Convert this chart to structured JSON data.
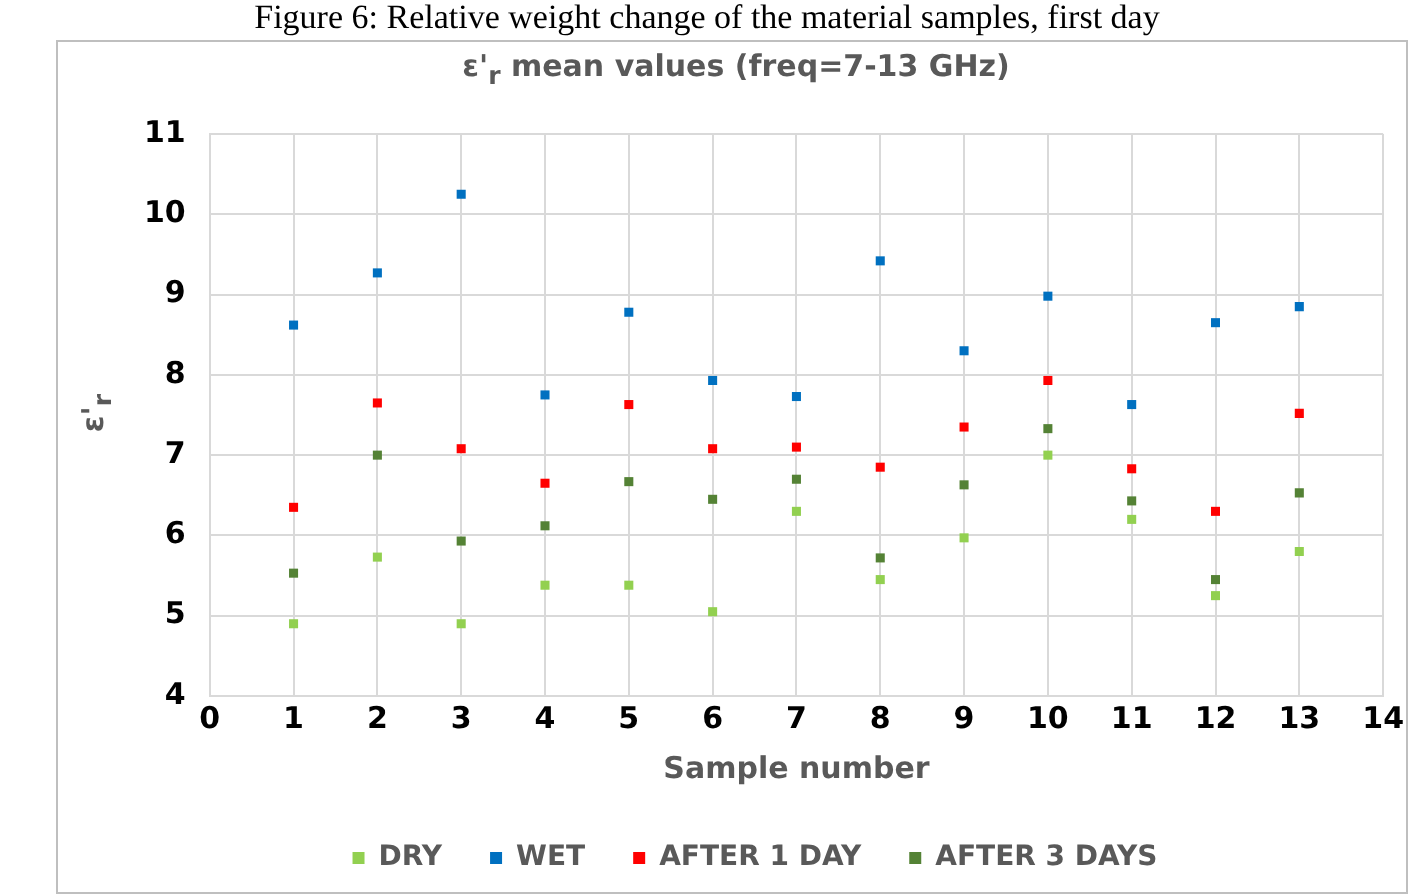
{
  "chart_data": {
    "type": "scatter",
    "title": "ε'$_{r}$ mean values (freq=7-13 GHz)",
    "xlabel": "Sample number",
    "ylabel": "ε'$_{r}$",
    "annotations": [
      "Figure 6: Relative weight change of the material samples, first day"
    ],
    "x": [
      1,
      2,
      3,
      4,
      5,
      6,
      7,
      8,
      9,
      10,
      11,
      12,
      13
    ],
    "series": [
      {
        "name": "DRY",
        "color": "#92d050",
        "values": [
          4.9,
          5.73,
          4.9,
          5.38,
          5.38,
          5.05,
          6.3,
          5.45,
          5.97,
          7.0,
          6.2,
          5.25,
          5.8
        ]
      },
      {
        "name": "WET",
        "color": "#0070c0",
        "values": [
          8.62,
          9.27,
          10.25,
          7.75,
          8.78,
          7.93,
          7.73,
          9.42,
          8.3,
          8.98,
          7.63,
          8.65,
          8.85
        ]
      },
      {
        "name": "AFTER 1 DAY",
        "color": "#ff0000",
        "values": [
          6.35,
          7.65,
          7.08,
          6.65,
          7.63,
          7.08,
          7.1,
          6.85,
          7.35,
          7.93,
          6.83,
          6.3,
          7.52
        ]
      },
      {
        "name": "AFTER 3 DAYS",
        "color": "#548235",
        "values": [
          5.53,
          7.0,
          5.93,
          6.12,
          6.67,
          6.45,
          6.7,
          5.72,
          6.63,
          7.33,
          6.43,
          5.45,
          6.53
        ]
      }
    ],
    "xlim": [
      0,
      14
    ],
    "xticks": [
      0,
      1,
      2,
      3,
      4,
      5,
      6,
      7,
      8,
      9,
      10,
      11,
      12,
      13,
      14
    ],
    "ylim": [
      4,
      11
    ],
    "yticks": [
      4,
      5,
      6,
      7,
      8,
      9,
      10,
      11
    ],
    "grid": true,
    "legend": "bottom",
    "marker": "square"
  }
}
